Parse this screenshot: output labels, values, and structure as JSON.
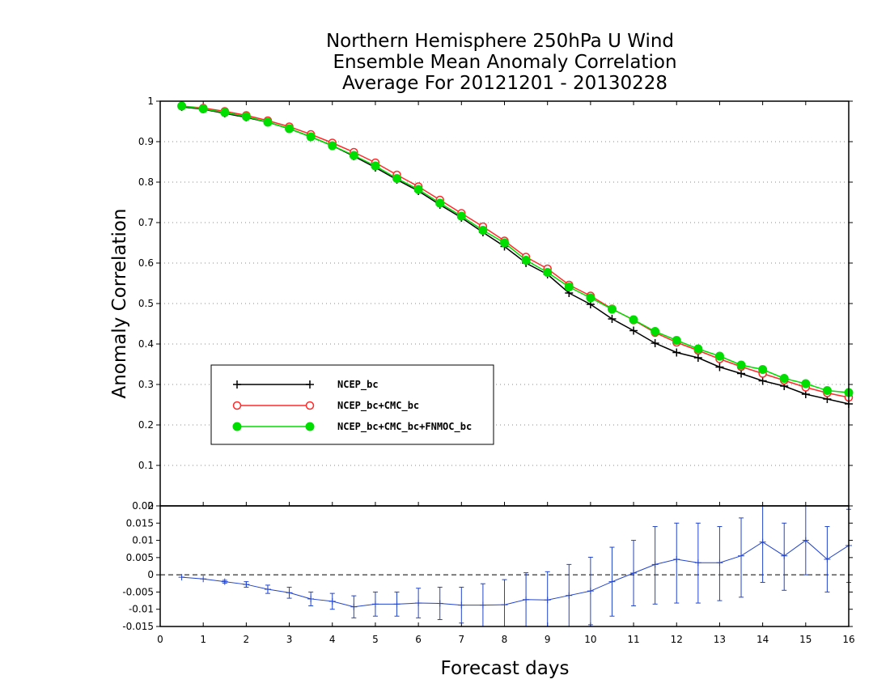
{
  "chart_data": [
    {
      "type": "line",
      "title": [
        "Northern Hemisphere 250hPa U Wind",
        "Ensemble Mean Anomaly Correlation",
        "Average For 20121201 - 20130228"
      ],
      "xlabel": "Forecast days",
      "ylabel": "Anomaly Correlation",
      "xlim": [
        0,
        16
      ],
      "ylim": [
        0,
        1
      ],
      "grid": "horizontal-dotted",
      "legend_position": "lower-left",
      "x_ticks": [
        "0",
        "1",
        "2",
        "3",
        "4",
        "5",
        "6",
        "7",
        "8",
        "9",
        "10",
        "11",
        "12",
        "13",
        "14",
        "15",
        "16"
      ],
      "y_ticks": [
        "0",
        "0.1",
        "0.2",
        "0.3",
        "0.4",
        "0.5",
        "0.6",
        "0.7",
        "0.8",
        "0.9",
        "1"
      ],
      "x": [
        0.5,
        1,
        1.5,
        2,
        2.5,
        3,
        3.5,
        4,
        4.5,
        5,
        5.5,
        6,
        6.5,
        7,
        7.5,
        8,
        8.5,
        9,
        9.5,
        10,
        10.5,
        11,
        11.5,
        12,
        12.5,
        13,
        13.5,
        14,
        14.5,
        15,
        15.5,
        16
      ],
      "series": [
        {
          "name": "NCEP_bc",
          "color": "#000000",
          "marker": "plus",
          "values": [
            0.986,
            0.98,
            0.97,
            0.96,
            0.948,
            0.932,
            0.912,
            0.89,
            0.864,
            0.836,
            0.806,
            0.778,
            0.744,
            0.712,
            0.676,
            0.641,
            0.6,
            0.572,
            0.526,
            0.498,
            0.462,
            0.433,
            0.402,
            0.379,
            0.366,
            0.343,
            0.327,
            0.309,
            0.296,
            0.276,
            0.264,
            0.252
          ]
        },
        {
          "name": "NCEP_bc+CMC_bc",
          "color": "#ff2a2a",
          "marker": "open-circle",
          "values": [
            0.988,
            0.983,
            0.975,
            0.965,
            0.952,
            0.937,
            0.918,
            0.897,
            0.874,
            0.848,
            0.818,
            0.789,
            0.756,
            0.723,
            0.69,
            0.655,
            0.615,
            0.586,
            0.546,
            0.519,
            0.487,
            0.459,
            0.428,
            0.404,
            0.384,
            0.363,
            0.344,
            0.327,
            0.31,
            0.293,
            0.279,
            0.268
          ]
        },
        {
          "name": "NCEP_bc+CMC_bc+FNMOC_bc",
          "color": "#00dd00",
          "marker": "filled-circle",
          "values": [
            0.988,
            0.981,
            0.972,
            0.962,
            0.948,
            0.932,
            0.912,
            0.89,
            0.866,
            0.84,
            0.809,
            0.782,
            0.748,
            0.716,
            0.681,
            0.65,
            0.607,
            0.577,
            0.541,
            0.514,
            0.486,
            0.46,
            0.431,
            0.409,
            0.388,
            0.37,
            0.348,
            0.337,
            0.315,
            0.302,
            0.285,
            0.28
          ]
        }
      ]
    },
    {
      "type": "line",
      "subtype": "difference-with-error-bars",
      "xlim": [
        0,
        16
      ],
      "ylim": [
        -0.015,
        0.02
      ],
      "y_ticks": [
        "-0.015",
        "-0.01",
        "-0.005",
        "0",
        "0.005",
        "0.01",
        "0.015",
        "0.02"
      ],
      "zero_line": "dashed",
      "x": [
        0.5,
        1,
        1.5,
        2,
        2.5,
        3,
        3.5,
        4,
        4.5,
        5,
        5.5,
        6,
        6.5,
        7,
        7.5,
        8,
        8.5,
        9,
        9.5,
        10,
        10.5,
        11,
        11.5,
        12,
        12.5,
        13,
        13.5,
        14,
        14.5,
        15,
        15.5,
        16
      ],
      "series": [
        {
          "color": "#2244cc",
          "marker": "plus",
          "values": [
            -0.0007,
            -0.0012,
            -0.002,
            -0.0028,
            -0.0042,
            -0.0052,
            -0.007,
            -0.0077,
            -0.0093,
            -0.0085,
            -0.0085,
            -0.0082,
            -0.0083,
            -0.0088,
            -0.0088,
            -0.0087,
            -0.0072,
            -0.0073,
            -0.006,
            -0.0047,
            -0.002,
            0.0005,
            0.003,
            0.0045,
            0.0035,
            0.0035,
            0.0055,
            0.0095,
            0.0055,
            0.01,
            0.0045,
            0.0085
          ],
          "err_low": [
            -0.0007,
            -0.0012,
            -0.0024,
            -0.0036,
            -0.0054,
            -0.0068,
            -0.009,
            -0.01,
            -0.0125,
            -0.012,
            -0.012,
            -0.0125,
            -0.013,
            -0.014,
            -0.015,
            -0.016,
            -0.015,
            -0.0155,
            -0.015,
            -0.0145,
            -0.012,
            -0.009,
            -0.0085,
            -0.0082,
            -0.0082,
            -0.0075,
            -0.0065,
            -0.0022,
            -0.0045,
            0.0,
            -0.005,
            -0.0022
          ],
          "err_high": [
            -0.0007,
            -0.0012,
            -0.0016,
            -0.002,
            -0.003,
            -0.0036,
            -0.005,
            -0.0054,
            -0.0061,
            -0.005,
            -0.005,
            -0.0039,
            -0.0036,
            -0.0036,
            -0.0026,
            -0.0014,
            0.0006,
            0.0009,
            0.003,
            0.0051,
            0.008,
            0.01,
            0.014,
            0.015,
            0.015,
            0.014,
            0.0165,
            0.02,
            0.015,
            0.02,
            0.014,
            0.019
          ]
        }
      ]
    }
  ]
}
